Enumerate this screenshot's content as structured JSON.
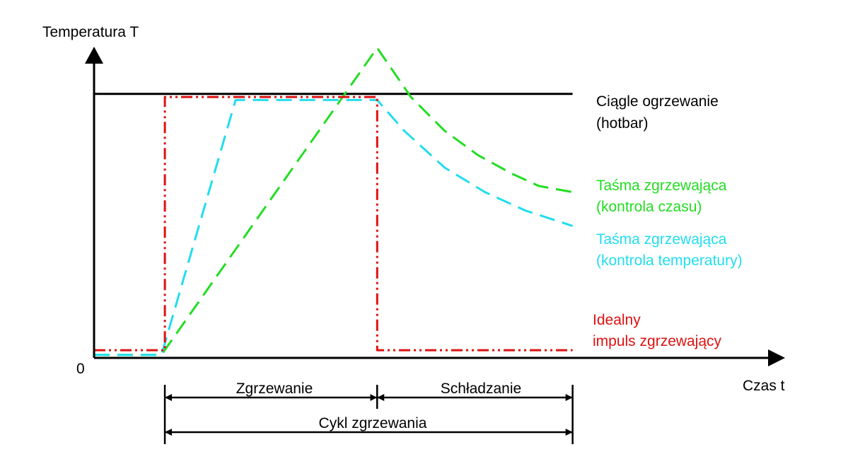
{
  "chart_data": {
    "type": "line",
    "xlabel": "Czas t",
    "ylabel": "Temperatura T",
    "origin_label": "0",
    "xlim": [
      0,
      100
    ],
    "ylim": [
      0,
      100
    ],
    "series": [
      {
        "name": "Ciągle ogrzewanie (hotbar)",
        "label_lines": [
          "Ciągle ogrzewanie",
          "(hotbar)"
        ],
        "color": "#000000",
        "style": "solid",
        "points": [
          [
            0,
            86
          ],
          [
            71,
            86
          ]
        ]
      },
      {
        "name": "Taśma zgrzewająca (kontrola czasu)",
        "label_lines": [
          "Taśma zgrzewająca",
          "(kontrola czasu)"
        ],
        "color": "#22dd22",
        "style": "dashed",
        "points": [
          [
            0,
            1
          ],
          [
            10,
            1
          ],
          [
            42,
            101
          ],
          [
            47,
            85
          ],
          [
            52,
            74
          ],
          [
            57,
            66
          ],
          [
            62,
            60
          ],
          [
            66,
            56
          ],
          [
            71,
            54
          ]
        ]
      },
      {
        "name": "Taśma zgrzewająca (kontrola temperatury)",
        "label_lines": [
          "Taśma zgrzewająca",
          "(kontrola temperatury)"
        ],
        "color": "#22ddee",
        "style": "dashed",
        "points": [
          [
            0,
            1
          ],
          [
            10,
            1
          ],
          [
            21,
            84
          ],
          [
            42,
            84
          ],
          [
            46,
            74
          ],
          [
            52,
            62
          ],
          [
            58,
            54
          ],
          [
            64,
            48
          ],
          [
            71,
            43
          ]
        ]
      },
      {
        "name": "Idealny impuls zgrzewający",
        "label_lines": [
          "Idealny",
          "impuls zgrzewający"
        ],
        "color": "#dd1111",
        "style": "dashdotdot",
        "points": [
          [
            0,
            2.5
          ],
          [
            10.5,
            2.5
          ],
          [
            10.5,
            85
          ],
          [
            42,
            85
          ],
          [
            42,
            2.5
          ],
          [
            71,
            2.5
          ]
        ]
      }
    ],
    "phases": [
      {
        "label": "Zgrzewanie",
        "from": 10.5,
        "to": 42
      },
      {
        "label": "Schładzanie",
        "from": 42,
        "to": 71
      }
    ],
    "cycle": {
      "label": "Cykl zgrzewania",
      "from": 10.5,
      "to": 71
    }
  }
}
